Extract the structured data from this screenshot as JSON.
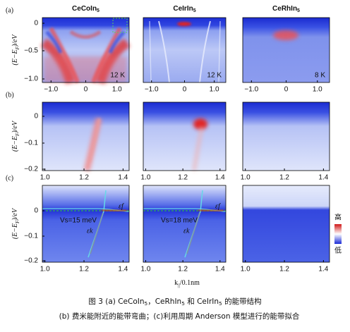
{
  "panel_labels": [
    "(a)",
    "(b)",
    "(c)"
  ],
  "titles": [
    [
      {
        "text": "CeCoIn"
      },
      {
        "text": "5",
        "sub": true
      }
    ],
    [
      {
        "text": "CeIrIn"
      },
      {
        "text": "5",
        "sub": true
      }
    ],
    [
      {
        "text": "CeRhIn"
      },
      {
        "text": "5",
        "sub": true
      }
    ]
  ],
  "y_label": [
    {
      "text": "(E−E"
    },
    {
      "text": "F",
      "sub": true
    },
    {
      "text": ")/eV"
    }
  ],
  "rows": [
    {
      "yticks": [
        "0",
        "−0.5",
        "−1.0"
      ],
      "xticks": [
        "−1.0",
        "0",
        "1.0"
      ],
      "temps": [
        "12 K",
        "12 K",
        "8 K"
      ]
    },
    {
      "yticks": [
        "0",
        "−0.1",
        "−0.2"
      ],
      "xticks": [
        "1.0",
        "1.2",
        "1.4"
      ]
    },
    {
      "yticks": [
        "0",
        "−0.1",
        "−0.2"
      ],
      "xticks": [
        "1.0",
        "1.2",
        "1.4"
      ]
    }
  ],
  "annotations": {
    "vs": [
      "Vs=15 meV",
      "Vs=18 meV"
    ],
    "ef": "εf",
    "ek": "εk"
  },
  "colorbar": {
    "high": "高",
    "low": "低"
  },
  "x_label": [
    {
      "text": "k"
    },
    {
      "text": "||",
      "sub": true
    },
    {
      "text": "/0.1nm"
    }
  ],
  "caption": [
    [
      {
        "text": "图 3   (a) CeCoIn"
      },
      {
        "text": "5",
        "sub": true
      },
      {
        "text": "，CeRhIn"
      },
      {
        "text": "5",
        "sub": true
      },
      {
        "text": " 和 CeIrIn"
      },
      {
        "text": "5",
        "sub": true
      },
      {
        "text": " 的能带结构"
      }
    ],
    [
      {
        "text": "(b) 费米能附近的能带弯曲；(c)利用周期 Anderson 模型进行的能带拟合"
      }
    ]
  ]
}
